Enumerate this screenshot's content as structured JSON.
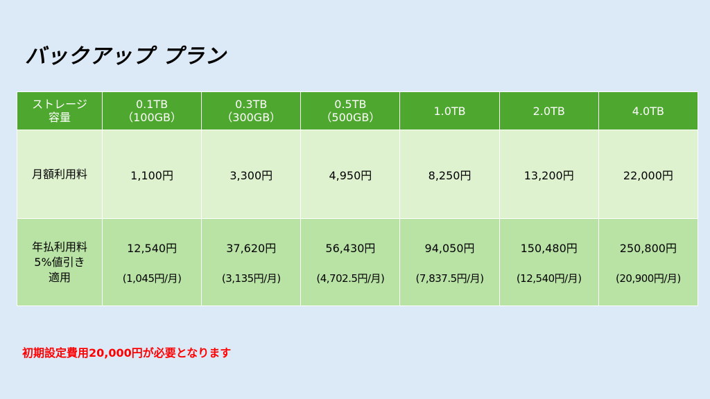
{
  "title": "バックアップ プラン",
  "table": {
    "header": {
      "label_line1": "ストレージ",
      "label_line2": "容量",
      "plans": [
        {
          "line1": "0.1TB",
          "line2": "（100GB）"
        },
        {
          "line1": "0.3TB",
          "line2": "（300GB）"
        },
        {
          "line1": "0.5TB",
          "line2": "（500GB）"
        },
        {
          "line1": "1.0TB",
          "line2": ""
        },
        {
          "line1": "2.0TB",
          "line2": ""
        },
        {
          "line1": "4.0TB",
          "line2": ""
        }
      ]
    },
    "monthly": {
      "label": "月額利用料",
      "values": [
        "1,100円",
        "3,300円",
        "4,950円",
        "8,250円",
        "13,200円",
        "22,000円"
      ]
    },
    "annual": {
      "label_line1": "年払利用料",
      "label_line2": "5%値引き",
      "label_line3": "適用",
      "values": [
        "12,540円",
        "37,620円",
        "56,430円",
        "94,050円",
        "150,480円",
        "250,800円"
      ],
      "per_month": [
        "(1,045円/月)",
        "(3,135円/月)",
        "(4,702.5円/月)",
        "(7,837.5円/月)",
        "(12,540円/月)",
        "(20,900円/月)"
      ]
    }
  },
  "note": "初期設定費用20,000円が必要となります",
  "colors": {
    "background": "#dce9f7",
    "header": "#4ea72e",
    "monthly_row": "#dff2d0",
    "annual_row": "#b9e3a5",
    "note": "#ff0000"
  }
}
